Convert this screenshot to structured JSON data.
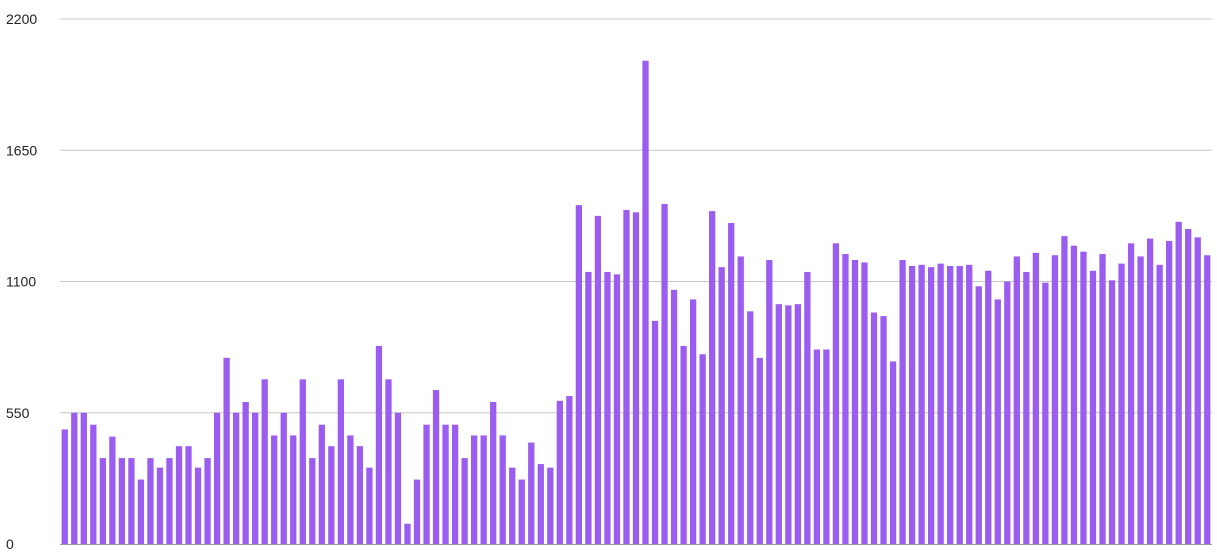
{
  "chart_data": {
    "type": "bar",
    "title": "",
    "xlabel": "",
    "ylabel": "",
    "ylim": [
      0,
      2200
    ],
    "y_ticks": [
      "0",
      "550",
      "1100",
      "1650",
      "2200"
    ],
    "grid": true,
    "legend": "none",
    "bar_color": "#9b5cf0",
    "values": [
      480,
      550,
      550,
      500,
      360,
      450,
      360,
      360,
      270,
      360,
      320,
      360,
      410,
      410,
      320,
      360,
      550,
      780,
      550,
      595,
      550,
      690,
      455,
      550,
      455,
      690,
      360,
      500,
      410,
      690,
      455,
      410,
      320,
      830,
      690,
      550,
      85,
      270,
      500,
      645,
      500,
      500,
      360,
      455,
      455,
      595,
      455,
      320,
      270,
      425,
      335,
      320,
      600,
      620,
      1420,
      1140,
      1375,
      1140,
      1130,
      1400,
      1390,
      2025,
      935,
      1425,
      1065,
      830,
      1025,
      795,
      1395,
      1160,
      1345,
      1205,
      975,
      780,
      1190,
      1005,
      1000,
      1005,
      1140,
      815,
      815,
      1260,
      1215,
      1190,
      1180,
      970,
      955,
      765,
      1190,
      1165,
      1170,
      1160,
      1175,
      1165,
      1165,
      1170,
      1080,
      1145,
      1025,
      1100,
      1205,
      1140,
      1220,
      1095,
      1210,
      1290,
      1250,
      1225,
      1145,
      1215,
      1105,
      1175,
      1260,
      1205,
      1280,
      1170,
      1270,
      1350,
      1320,
      1285,
      1210
    ]
  }
}
